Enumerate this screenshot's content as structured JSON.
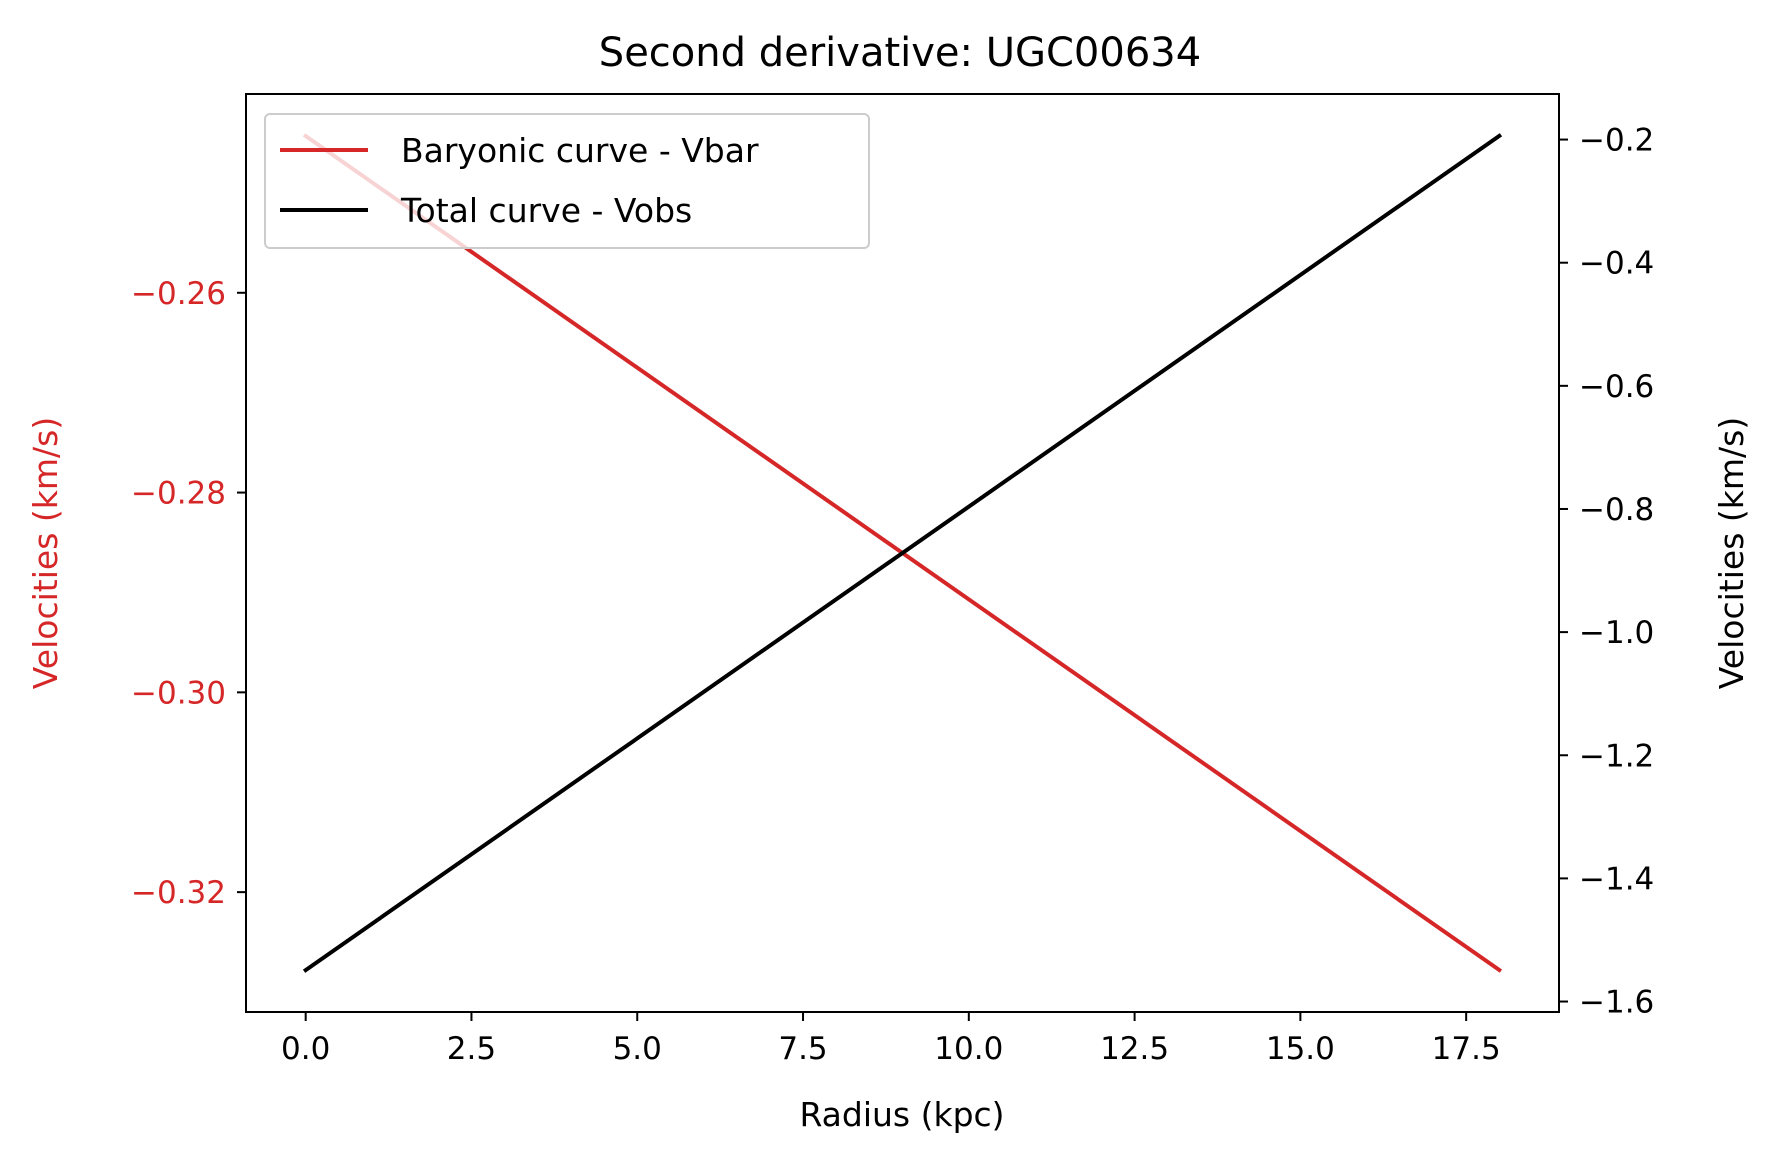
{
  "chart_data": {
    "type": "line",
    "title": "Second derivative: UGC00634",
    "xlabel": "Radius (kpc)",
    "xlim": [
      -0.9,
      18.9
    ],
    "xticks": [
      0.0,
      2.5,
      5.0,
      7.5,
      10.0,
      12.5,
      15.0,
      17.5
    ],
    "xtick_labels": [
      "0.0",
      "2.5",
      "5.0",
      "7.5",
      "10.0",
      "12.5",
      "15.0",
      "17.5"
    ],
    "grid": false,
    "legend_position": "upper-left",
    "left_axis": {
      "label": "Velocities (km/s)",
      "color": "#d62728",
      "ylim": [
        -0.332,
        -0.2401
      ],
      "ticks": [
        -0.26,
        -0.28,
        -0.3,
        -0.32
      ],
      "tick_labels": [
        "−0.26",
        "−0.28",
        "−0.30",
        "−0.32"
      ]
    },
    "right_axis": {
      "label": "Velocities (km/s)",
      "color": "#000000",
      "ylim": [
        -1.617,
        -0.126
      ],
      "ticks": [
        -0.2,
        -0.4,
        -0.6,
        -0.8,
        -1.0,
        -1.2,
        -1.4,
        -1.6
      ],
      "tick_labels": [
        "−0.2",
        "−0.4",
        "−0.6",
        "−0.8",
        "−1.0",
        "−1.2",
        "−1.4",
        "−1.6"
      ]
    },
    "series": [
      {
        "name": "Baryonic curve - Vbar",
        "axis": "left",
        "color": "#d62728",
        "x": [
          0.0,
          18.0
        ],
        "y": [
          -0.2443,
          -0.3278
        ]
      },
      {
        "name": "Total curve - Vobs",
        "axis": "right",
        "color": "#000000",
        "x": [
          0.0,
          18.0
        ],
        "y": [
          -1.549,
          -0.194
        ]
      }
    ]
  }
}
